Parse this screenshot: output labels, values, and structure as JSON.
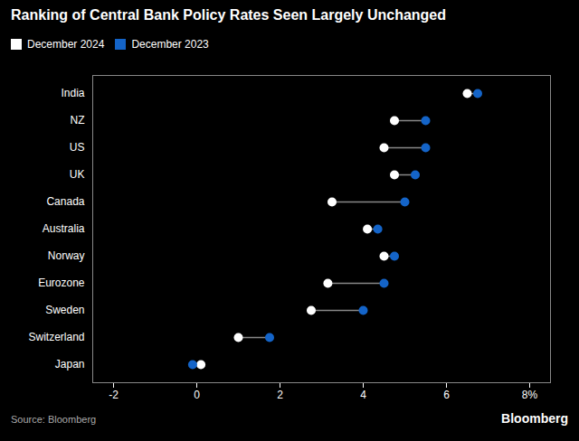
{
  "chart_data": {
    "type": "dumbbell",
    "title": "Ranking of Central Bank Policy Rates Seen Largely Unchanged",
    "categories": [
      "India",
      "NZ",
      "US",
      "UK",
      "Canada",
      "Australia",
      "Norway",
      "Eurozone",
      "Sweden",
      "Switzerland",
      "Japan"
    ],
    "series": [
      {
        "name": "December 2024",
        "color": "#ffffff",
        "values": [
          6.5,
          4.75,
          4.5,
          4.75,
          3.25,
          4.1,
          4.5,
          3.15,
          2.75,
          1.0,
          0.1
        ]
      },
      {
        "name": "December 2023",
        "color": "#1464c8",
        "values": [
          6.75,
          5.5,
          5.5,
          5.25,
          5.0,
          4.35,
          4.75,
          4.5,
          4.0,
          1.75,
          -0.1
        ]
      }
    ],
    "orientation": "horizontal",
    "xlim": [
      -2.5,
      8.5
    ],
    "xticks": [
      -2,
      0,
      2,
      4,
      6,
      {
        "value": 8,
        "label": "8%"
      }
    ],
    "legend": "upper left",
    "grid": false,
    "annotations": [
      "Source: Bloomberg",
      "Bloomberg"
    ]
  }
}
